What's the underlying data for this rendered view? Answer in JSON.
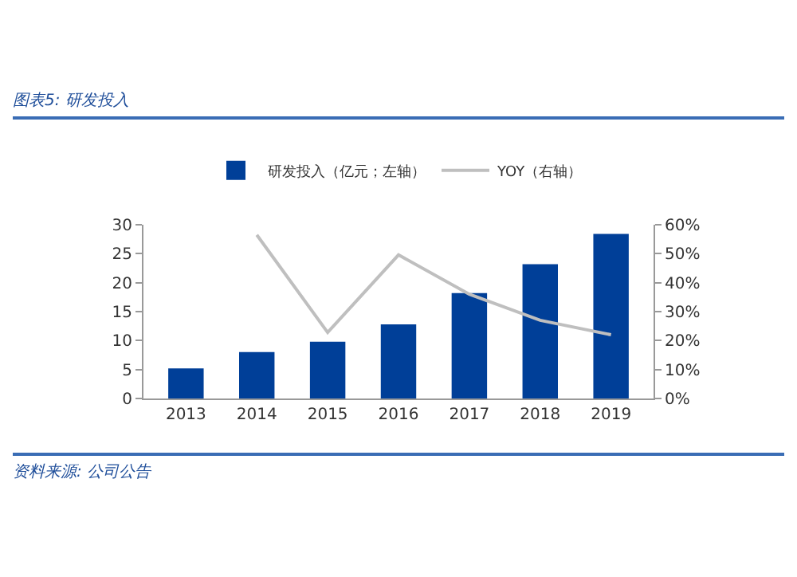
{
  "chart_data": {
    "type": "bar",
    "title": "图表5: 研发投入",
    "categories": [
      "2013",
      "2014",
      "2015",
      "2016",
      "2017",
      "2018",
      "2019"
    ],
    "series": [
      {
        "name": "研发投入（亿元；左轴）",
        "color": "#003f98",
        "values": [
          5.2,
          8.0,
          9.8,
          12.8,
          18.2,
          23.2,
          28.4
        ]
      },
      {
        "name": "YOY（右轴）",
        "type": "line",
        "axis": "y2",
        "color": "#bfbfbf",
        "values": [
          null,
          56.5,
          22.8,
          49.6,
          36,
          27,
          22
        ]
      }
    ],
    "ylim": [
      0,
      30
    ],
    "yticks": [
      0,
      5,
      10,
      15,
      20,
      25,
      30
    ],
    "y2lim": [
      0,
      60
    ],
    "y2ticks": [
      {
        "value": 0,
        "label": "0%"
      },
      {
        "value": 10,
        "label": "10%"
      },
      {
        "value": 20,
        "label": "20%"
      },
      {
        "value": 30,
        "label": "30%"
      },
      {
        "value": 40,
        "label": "40%"
      },
      {
        "value": 50,
        "label": "50%"
      },
      {
        "value": 60,
        "label": "60%"
      }
    ],
    "legend": "top",
    "grid": false,
    "annotations": [
      "资料来源: 公司公告"
    ]
  }
}
